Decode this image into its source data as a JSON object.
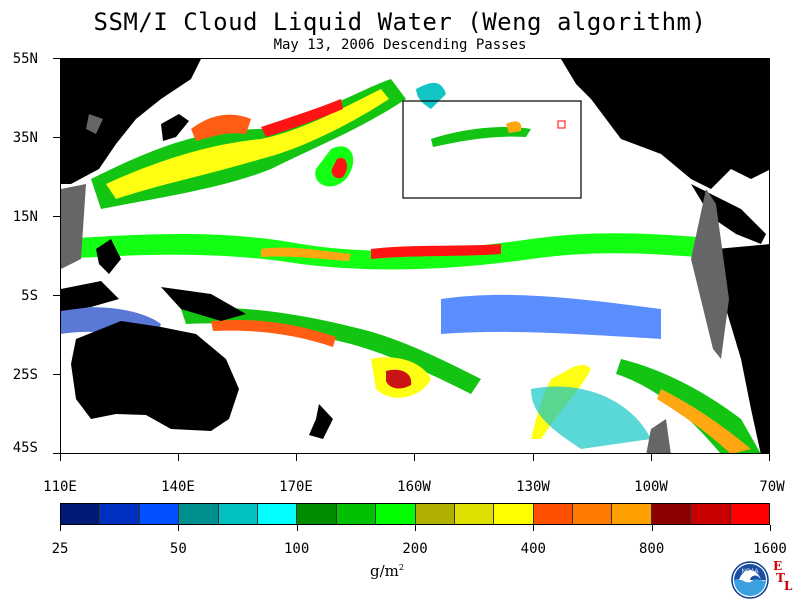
{
  "title": "SSM/I Cloud Liquid Water (Weng algorithm)",
  "subtitle": "May 13, 2006  Descending Passes",
  "lat_labels": [
    "55N",
    "35N",
    "15N",
    "5S",
    "25S",
    "45S"
  ],
  "lon_labels": [
    "110E",
    "140E",
    "170E",
    "160W",
    "130W",
    "100W",
    "70W"
  ],
  "colorbar": {
    "colors": [
      "#001a7a",
      "#0030c0",
      "#0050ff",
      "#009090",
      "#00c0c0",
      "#00ffff",
      "#008c00",
      "#00c000",
      "#00ff00",
      "#b0b000",
      "#e0e000",
      "#ffff00",
      "#ff5000",
      "#ff7a00",
      "#ffa000",
      "#8c0000",
      "#c80000",
      "#ff0000"
    ],
    "tick_labels": [
      "25",
      "50",
      "100",
      "200",
      "400",
      "800",
      "1600"
    ]
  },
  "units": "g/m",
  "units_exp": "2",
  "logo": {
    "name": "NOAA",
    "etl_letters": [
      "E",
      "T",
      "L"
    ]
  }
}
